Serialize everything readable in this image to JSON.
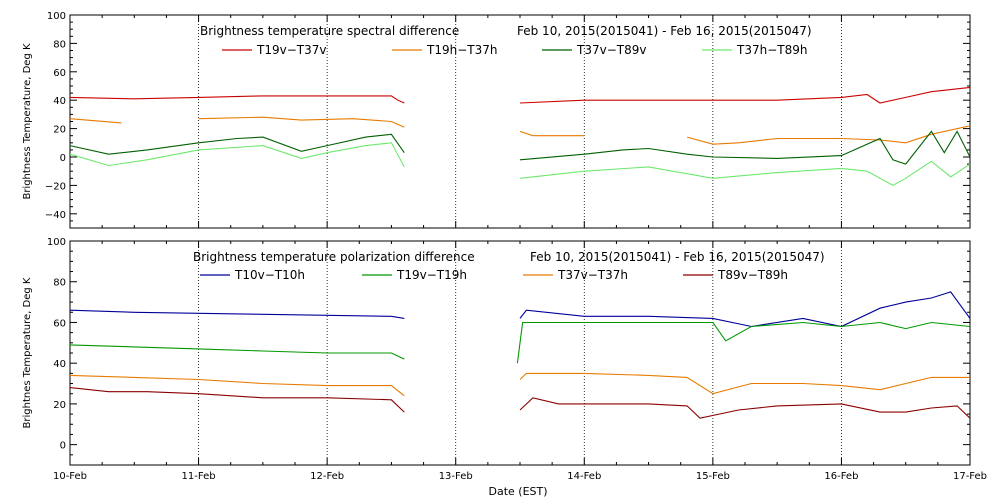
{
  "chart_data": [
    {
      "type": "line",
      "title": "Brightness temperature spectral difference",
      "date_range": "Feb 10, 2015(2015041) - Feb 16, 2015(2015047)",
      "ylabel": "Brightness Temperature, Deg K",
      "xlabel": "",
      "ylim": [
        -50,
        100
      ],
      "yticks": [
        -40,
        -20,
        0,
        20,
        40,
        60,
        80,
        100
      ],
      "ytick_labels": [
        "−40",
        "−20",
        "0",
        "20",
        "40",
        "60",
        "80",
        "100"
      ],
      "xlim": [
        0,
        7
      ],
      "x_units": "days since 10-Feb 00:00 EST",
      "series": [
        {
          "name": "T19v−T37v",
          "color": "#cc0000",
          "points": [
            [
              0,
              42
            ],
            [
              0.5,
              41
            ],
            [
              1,
              42
            ],
            [
              1.5,
              43
            ],
            [
              2,
              43
            ],
            [
              2.5,
              43
            ],
            [
              2.55,
              40
            ],
            [
              2.6,
              38
            ],
            [
              3.5,
              38
            ],
            [
              4,
              40
            ],
            [
              4.5,
              40
            ],
            [
              5,
              40
            ],
            [
              5.5,
              40
            ],
            [
              6,
              42
            ],
            [
              6.2,
              44
            ],
            [
              6.3,
              38
            ],
            [
              6.5,
              42
            ],
            [
              6.7,
              46
            ],
            [
              7,
              49
            ]
          ]
        },
        {
          "name": "T19h−T37h",
          "color": "#e87a00",
          "points": [
            [
              0,
              27
            ],
            [
              0.4,
              24
            ],
            [
              1,
              27
            ],
            [
              1.5,
              28
            ],
            [
              1.8,
              26
            ],
            [
              2.2,
              27
            ],
            [
              2.5,
              25
            ],
            [
              2.6,
              21
            ],
            [
              3.5,
              18
            ],
            [
              3.6,
              15
            ],
            [
              4,
              15
            ],
            [
              4.8,
              14
            ],
            [
              5,
              9
            ],
            [
              5.2,
              10
            ],
            [
              5.5,
              13
            ],
            [
              6,
              13
            ],
            [
              6.3,
              12
            ],
            [
              6.5,
              10
            ],
            [
              6.7,
              16
            ],
            [
              7,
              22
            ]
          ]
        },
        {
          "name": "T37v−T89v",
          "color": "#006000",
          "points": [
            [
              0,
              8
            ],
            [
              0.3,
              2
            ],
            [
              0.6,
              5
            ],
            [
              1,
              10
            ],
            [
              1.3,
              13
            ],
            [
              1.5,
              14
            ],
            [
              1.8,
              4
            ],
            [
              2,
              8
            ],
            [
              2.3,
              14
            ],
            [
              2.5,
              16
            ],
            [
              2.6,
              3
            ],
            [
              3.5,
              -2
            ],
            [
              4,
              2
            ],
            [
              4.3,
              5
            ],
            [
              4.5,
              6
            ],
            [
              4.8,
              2
            ],
            [
              5,
              0
            ],
            [
              5.5,
              -1
            ],
            [
              6,
              1
            ],
            [
              6.3,
              13
            ],
            [
              6.4,
              -2
            ],
            [
              6.5,
              -5
            ],
            [
              6.7,
              18
            ],
            [
              6.8,
              3
            ],
            [
              6.9,
              18
            ],
            [
              7,
              0
            ]
          ]
        },
        {
          "name": "T37h−T89h",
          "color": "#6ee86e",
          "points": [
            [
              0,
              2
            ],
            [
              0.3,
              -6
            ],
            [
              0.6,
              -2
            ],
            [
              1,
              5
            ],
            [
              1.5,
              8
            ],
            [
              1.8,
              -1
            ],
            [
              2,
              3
            ],
            [
              2.3,
              8
            ],
            [
              2.5,
              10
            ],
            [
              2.6,
              -7
            ],
            [
              3.5,
              -15
            ],
            [
              4,
              -10
            ],
            [
              4.5,
              -7
            ],
            [
              5,
              -15
            ],
            [
              5.5,
              -11
            ],
            [
              6,
              -8
            ],
            [
              6.2,
              -10
            ],
            [
              6.4,
              -20
            ],
            [
              6.5,
              -15
            ],
            [
              6.7,
              -3
            ],
            [
              6.85,
              -14
            ],
            [
              7,
              -5
            ]
          ]
        }
      ]
    },
    {
      "type": "line",
      "title": "Brightness temperature polarization difference",
      "date_range": "Feb 10, 2015(2015041) - Feb 16, 2015(2015047)",
      "ylabel": "Brightnes Temperature, Deg K",
      "xlabel": "Date (EST)",
      "ylim": [
        -10,
        100
      ],
      "yticks": [
        0,
        20,
        40,
        60,
        80,
        100
      ],
      "ytick_labels": [
        "0",
        "20",
        "40",
        "60",
        "80",
        "100"
      ],
      "xlim": [
        0,
        7
      ],
      "x_units": "days since 10-Feb 00:00 EST",
      "series": [
        {
          "name": "T10v−T10h",
          "color": "#000099",
          "points": [
            [
              0,
              66
            ],
            [
              0.5,
              65
            ],
            [
              1,
              64.5
            ],
            [
              1.5,
              64
            ],
            [
              2,
              63.5
            ],
            [
              2.5,
              63
            ],
            [
              2.6,
              62
            ],
            [
              3.5,
              62
            ],
            [
              3.55,
              66
            ],
            [
              4,
              63
            ],
            [
              4.5,
              63
            ],
            [
              5,
              62
            ],
            [
              5.3,
              58
            ],
            [
              5.7,
              62
            ],
            [
              6,
              58
            ],
            [
              6.3,
              67
            ],
            [
              6.5,
              70
            ],
            [
              6.7,
              72
            ],
            [
              6.85,
              75
            ],
            [
              7,
              62
            ]
          ]
        },
        {
          "name": "T19v−T19h",
          "color": "#009900",
          "points": [
            [
              0,
              49
            ],
            [
              0.5,
              48
            ],
            [
              1,
              47
            ],
            [
              1.5,
              46
            ],
            [
              2,
              45
            ],
            [
              2.5,
              45
            ],
            [
              2.6,
              42
            ],
            [
              3.48,
              40
            ],
            [
              3.52,
              60
            ],
            [
              4,
              60
            ],
            [
              4.5,
              60
            ],
            [
              5,
              60
            ],
            [
              5.1,
              51
            ],
            [
              5.3,
              58
            ],
            [
              5.7,
              60
            ],
            [
              6,
              58
            ],
            [
              6.3,
              60
            ],
            [
              6.5,
              57
            ],
            [
              6.7,
              60
            ],
            [
              7,
              58
            ]
          ]
        },
        {
          "name": "T37v−T37h",
          "color": "#e87a00",
          "points": [
            [
              0,
              34
            ],
            [
              0.5,
              33
            ],
            [
              1,
              32
            ],
            [
              1.5,
              30
            ],
            [
              2,
              29
            ],
            [
              2.5,
              29
            ],
            [
              2.6,
              24
            ],
            [
              3.5,
              32
            ],
            [
              3.55,
              35
            ],
            [
              4,
              35
            ],
            [
              4.5,
              34
            ],
            [
              4.8,
              33
            ],
            [
              5,
              25
            ],
            [
              5.3,
              30
            ],
            [
              5.7,
              30
            ],
            [
              6,
              29
            ],
            [
              6.3,
              27
            ],
            [
              6.5,
              30
            ],
            [
              6.7,
              33
            ],
            [
              7,
              33
            ]
          ]
        },
        {
          "name": "T89v−T89h",
          "color": "#8b0000",
          "points": [
            [
              0,
              28
            ],
            [
              0.3,
              26
            ],
            [
              0.6,
              26
            ],
            [
              1,
              25
            ],
            [
              1.5,
              23
            ],
            [
              2,
              23
            ],
            [
              2.5,
              22
            ],
            [
              2.6,
              16
            ],
            [
              3.5,
              17
            ],
            [
              3.6,
              23
            ],
            [
              3.8,
              20
            ],
            [
              4,
              20
            ],
            [
              4.5,
              20
            ],
            [
              4.8,
              19
            ],
            [
              4.9,
              13
            ],
            [
              5.2,
              17
            ],
            [
              5.5,
              19
            ],
            [
              6,
              20
            ],
            [
              6.3,
              16
            ],
            [
              6.5,
              16
            ],
            [
              6.7,
              18
            ],
            [
              6.9,
              19
            ],
            [
              7,
              13
            ]
          ]
        }
      ]
    }
  ],
  "x_tick_labels": [
    "10-Feb",
    "11-Feb",
    "12-Feb",
    "13-Feb",
    "14-Feb",
    "15-Feb",
    "16-Feb",
    "17-Feb"
  ]
}
